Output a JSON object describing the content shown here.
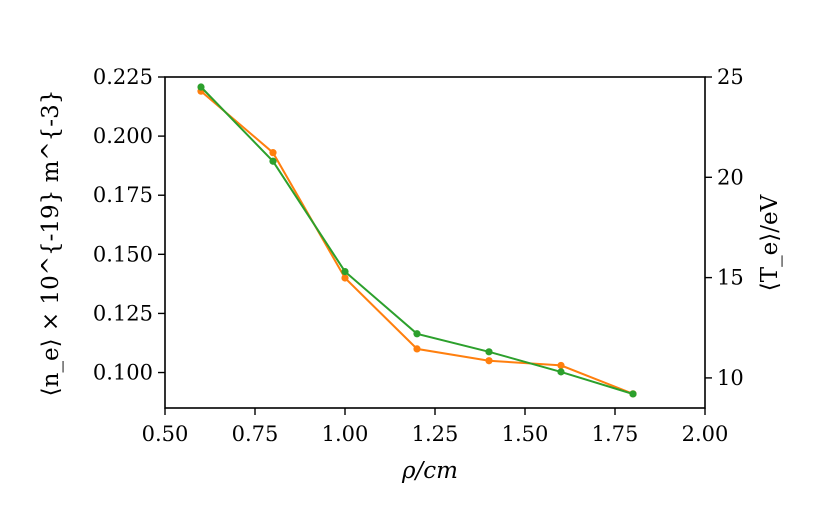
{
  "chart_data": {
    "type": "line",
    "xlabel": "ρ/cm",
    "ylabel_left": "⟨n_e⟩ × 10^{-19} m^{-3}",
    "ylabel_right": "⟨T_e⟩/eV",
    "xlim": [
      0.5,
      2.0
    ],
    "ylim_left": [
      0.085,
      0.225
    ],
    "ylim_right": [
      8.5,
      25.0
    ],
    "xticks": [
      0.5,
      0.75,
      1.0,
      1.25,
      1.5,
      1.75,
      2.0
    ],
    "xtick_labels": [
      "0.50",
      "0.75",
      "1.00",
      "1.25",
      "1.50",
      "1.75",
      "2.00"
    ],
    "yticks_left": [
      0.1,
      0.125,
      0.15,
      0.175,
      0.2,
      0.225
    ],
    "ytick_labels_left": [
      "0.100",
      "0.125",
      "0.150",
      "0.175",
      "0.200",
      "0.225"
    ],
    "yticks_right": [
      10,
      15,
      20,
      25
    ],
    "ytick_labels_right": [
      "10",
      "15",
      "20",
      "25"
    ],
    "grid": false,
    "series": [
      {
        "axis": "left",
        "color": "#ff7f0e",
        "x": [
          0.6,
          0.8,
          1.0,
          1.2,
          1.4,
          1.6,
          1.8
        ],
        "y": [
          0.219,
          0.193,
          0.14,
          0.11,
          0.105,
          0.103,
          0.091
        ]
      },
      {
        "axis": "right",
        "color": "#2ca02c",
        "x": [
          0.6,
          0.8,
          1.0,
          1.2,
          1.4,
          1.6,
          1.8
        ],
        "y": [
          24.5,
          20.8,
          15.3,
          12.2,
          11.3,
          10.3,
          9.2
        ]
      }
    ]
  }
}
